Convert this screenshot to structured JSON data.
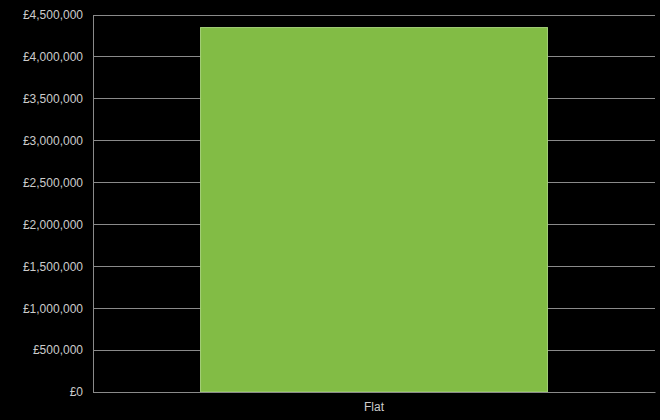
{
  "chart_data": {
    "type": "bar",
    "categories": [
      "Flat"
    ],
    "values": [
      4350000
    ],
    "color": "#82bc45",
    "ylim": [
      0,
      4500000
    ],
    "yticks": [
      {
        "value": 0,
        "label": "£0"
      },
      {
        "value": 500000,
        "label": "£500,000"
      },
      {
        "value": 1000000,
        "label": "£1,000,000"
      },
      {
        "value": 1500000,
        "label": "£1,500,000"
      },
      {
        "value": 2000000,
        "label": "£2,000,000"
      },
      {
        "value": 2500000,
        "label": "£2,500,000"
      },
      {
        "value": 3000000,
        "label": "£3,000,000"
      },
      {
        "value": 3500000,
        "label": "£3,500,000"
      },
      {
        "value": 4000000,
        "label": "£4,000,000"
      },
      {
        "value": 4500000,
        "label": "£4,500,000"
      }
    ],
    "grid": true
  }
}
